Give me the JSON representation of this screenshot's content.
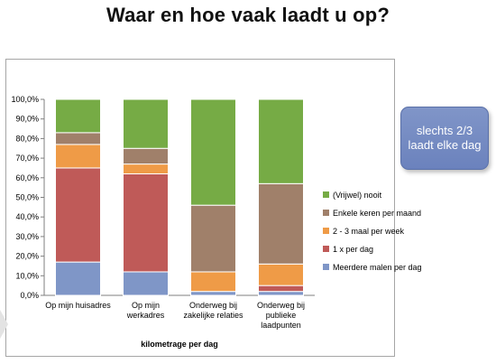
{
  "slide": {
    "title": "Waar en hoe vaak laadt u op?",
    "callout": "slechts 2/3 laadt elke dag"
  },
  "colors": {
    "Meerdere malen per dag": "#7f96c7",
    "1 x per dag": "#bf5a58",
    "2 - 3 maal per week": "#ef9b47",
    "Enkele keren per maand": "#a0806a",
    "(Vrijwel) nooit": "#76ab45"
  },
  "chart_data": {
    "type": "bar",
    "stacked": true,
    "title": "",
    "xlabel": "kilometrage per dag",
    "ylabel": "",
    "ylim": [
      0,
      100
    ],
    "yticks": [
      "0,0%",
      "10,0%",
      "20,0%",
      "30,0%",
      "40,0%",
      "50,0%",
      "60,0%",
      "70,0%",
      "80,0%",
      "90,0%",
      "100,0%"
    ],
    "grid": false,
    "legend": "right",
    "categories": [
      [
        "Op mijn huisadres"
      ],
      [
        "Op mijn",
        "werkadres"
      ],
      [
        "Onderweg bij",
        "zakelijke relaties"
      ],
      [
        "Onderweg bij",
        "publieke",
        "laadpunten"
      ]
    ],
    "series": [
      {
        "name": "Meerdere malen per dag",
        "values": [
          17,
          12,
          2,
          2
        ]
      },
      {
        "name": "1 x per dag",
        "values": [
          48,
          50,
          0,
          3
        ]
      },
      {
        "name": "2 - 3 maal per week",
        "values": [
          12,
          5,
          10,
          11
        ]
      },
      {
        "name": "Enkele keren per maand",
        "values": [
          6,
          8,
          34,
          41
        ]
      },
      {
        "name": "(Vrijwel) nooit",
        "values": [
          17,
          25,
          54,
          43
        ]
      }
    ]
  }
}
